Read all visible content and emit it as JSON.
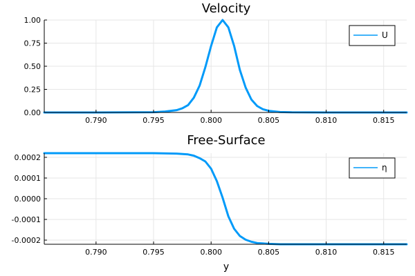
{
  "chart_data": [
    {
      "type": "line",
      "title": "Velocity",
      "xlabel": "",
      "ylabel": "",
      "xlim": [
        0.7855,
        0.817
      ],
      "ylim": [
        0.0,
        1.0
      ],
      "xticks": [
        0.79,
        0.795,
        0.8,
        0.805,
        0.81,
        0.815
      ],
      "xtick_labels": [
        "0.790",
        "0.795",
        "0.800",
        "0.805",
        "0.810",
        "0.815"
      ],
      "yticks": [
        0.0,
        0.25,
        0.5,
        0.75,
        1.0
      ],
      "ytick_labels": [
        "0.00",
        "0.25",
        "0.50",
        "0.75",
        "1.00"
      ],
      "grid": true,
      "legend_position": "top-right",
      "series": [
        {
          "name": "U",
          "color": "#009af9",
          "x": [
            0.7855,
            0.79,
            0.795,
            0.796,
            0.797,
            0.7975,
            0.798,
            0.7985,
            0.799,
            0.7995,
            0.8,
            0.8005,
            0.801,
            0.8015,
            0.802,
            0.8025,
            0.803,
            0.8035,
            0.804,
            0.8045,
            0.805,
            0.806,
            0.807,
            0.81,
            0.817
          ],
          "y": [
            0.0,
            0.0,
            0.003,
            0.01,
            0.025,
            0.045,
            0.08,
            0.16,
            0.29,
            0.49,
            0.72,
            0.92,
            1.0,
            0.92,
            0.72,
            0.46,
            0.27,
            0.14,
            0.07,
            0.035,
            0.018,
            0.005,
            0.0015,
            0.0,
            0.0
          ]
        }
      ]
    },
    {
      "type": "line",
      "title": "Free-Surface",
      "xlabel": "y",
      "ylabel": "",
      "xlim": [
        0.7855,
        0.817
      ],
      "ylim": [
        -0.00022,
        0.00022
      ],
      "xticks": [
        0.79,
        0.795,
        0.8,
        0.805,
        0.81,
        0.815
      ],
      "xtick_labels": [
        "0.790",
        "0.795",
        "0.800",
        "0.805",
        "0.810",
        "0.815"
      ],
      "yticks": [
        -0.0002,
        -0.0001,
        0.0,
        0.0001,
        0.0002
      ],
      "ytick_labels": [
        "-0.0002",
        "-0.0001",
        "0.0000",
        "0.0001",
        "0.0002"
      ],
      "grid": true,
      "legend_position": "top-right",
      "series": [
        {
          "name": "η",
          "color": "#009af9",
          "x": [
            0.7855,
            0.79,
            0.795,
            0.797,
            0.798,
            0.7985,
            0.799,
            0.7995,
            0.8,
            0.8005,
            0.801,
            0.8015,
            0.802,
            0.8025,
            0.803,
            0.8035,
            0.804,
            0.805,
            0.806,
            0.808,
            0.812,
            0.817
          ],
          "y": [
            0.00022,
            0.00022,
            0.00022,
            0.000218,
            0.000214,
            0.000208,
            0.000196,
            0.00018,
            0.000145,
            8.5e-05,
            5e-06,
            -8.5e-05,
            -0.000145,
            -0.00018,
            -0.000198,
            -0.000208,
            -0.000214,
            -0.000218,
            -0.00022,
            -0.00022,
            -0.00022,
            -0.00022
          ]
        }
      ]
    }
  ]
}
